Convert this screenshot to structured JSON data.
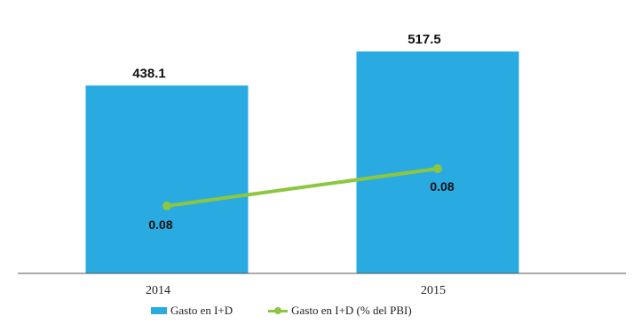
{
  "chart_data": {
    "type": "bar",
    "categories": [
      "2014",
      "2015"
    ],
    "series": [
      {
        "name": "Gasto en I+D",
        "type": "bar",
        "values": [
          438.1,
          517.5
        ],
        "labels": [
          "438.1",
          "517.5"
        ],
        "color": "#29abe2"
      },
      {
        "name": "Gasto en I+D (% del PBI)",
        "type": "line",
        "values": [
          0.08,
          0.08
        ],
        "labels": [
          "0.08",
          "0.08"
        ],
        "color": "#8dc63f"
      }
    ],
    "legend_position": "bottom"
  }
}
